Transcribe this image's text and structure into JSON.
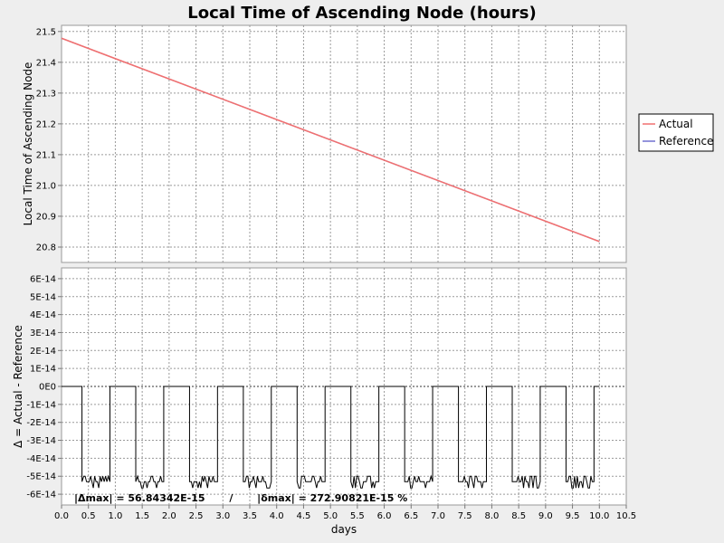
{
  "chart_data": [
    {
      "type": "line",
      "title": "Local Time of Ascending Node (hours)",
      "xlabel": "",
      "ylabel": "Local Time of Ascending Node",
      "xlim": [
        0,
        10.5
      ],
      "ylim": [
        20.75,
        21.52
      ],
      "x_ticks": [
        "0.0",
        "0.5",
        "1.0",
        "1.5",
        "2.0",
        "2.5",
        "3.0",
        "3.5",
        "4.0",
        "4.5",
        "5.0",
        "5.5",
        "6.0",
        "6.5",
        "7.0",
        "7.5",
        "8.0",
        "8.5",
        "9.0",
        "9.5",
        "10.0",
        "10.5"
      ],
      "y_ticks": [
        {
          "value": 20.8,
          "label": "20.8"
        },
        {
          "value": 20.9,
          "label": "20.9"
        },
        {
          "value": 21.0,
          "label": "21.0"
        },
        {
          "value": 21.1,
          "label": "21.1"
        },
        {
          "value": 21.2,
          "label": "21.2"
        },
        {
          "value": 21.3,
          "label": "21.3"
        },
        {
          "value": 21.4,
          "label": "21.4"
        },
        {
          "value": 21.5,
          "label": "21.5"
        }
      ],
      "grid": true,
      "legend_position": "right",
      "series": [
        {
          "name": "Actual",
          "color": "#f07070",
          "x": [
            0,
            10.0
          ],
          "y": [
            21.478,
            20.818
          ]
        },
        {
          "name": "Reference",
          "color": "#7070d0",
          "x": [
            0,
            10.0
          ],
          "y": [
            21.478,
            20.818
          ]
        }
      ]
    },
    {
      "type": "line",
      "xlabel": "days",
      "ylabel": "Δ = Actual - Reference",
      "xlim": [
        0,
        10.5
      ],
      "ylim": [
        -6.6e-14,
        6.6e-14
      ],
      "y_ticks": [
        {
          "value": 6e-14,
          "label": "6E-14"
        },
        {
          "value": 5e-14,
          "label": "5E-14"
        },
        {
          "value": 4e-14,
          "label": "4E-14"
        },
        {
          "value": 3e-14,
          "label": "3E-14"
        },
        {
          "value": 2e-14,
          "label": "2E-14"
        },
        {
          "value": 1e-14,
          "label": "1E-14"
        },
        {
          "value": 0,
          "label": "0E0"
        },
        {
          "value": -1e-14,
          "label": "-1E-14"
        },
        {
          "value": -2e-14,
          "label": "-2E-14"
        },
        {
          "value": -3e-14,
          "label": "-3E-14"
        },
        {
          "value": -4e-14,
          "label": "-4E-14"
        },
        {
          "value": -5e-14,
          "label": "-5E-14"
        },
        {
          "value": -6e-14,
          "label": "-6E-14"
        }
      ],
      "grid": true,
      "zero_segments": [
        [
          0,
          0.38
        ],
        [
          0.9,
          1.38
        ],
        [
          1.9,
          2.38
        ],
        [
          2.9,
          3.38
        ],
        [
          3.9,
          4.38
        ],
        [
          4.9,
          5.38
        ],
        [
          5.9,
          6.38
        ],
        [
          6.9,
          7.38
        ],
        [
          7.9,
          8.38
        ],
        [
          8.9,
          9.38
        ],
        [
          9.9,
          10.0
        ]
      ],
      "low_level": -5.3e-14,
      "stats_text": "|Δmax| = 56.84342E-15       /       |δmax| = 272.90821E-15 %"
    }
  ]
}
